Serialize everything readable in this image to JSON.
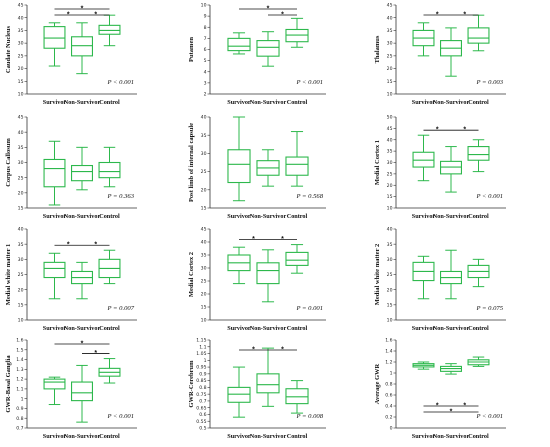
{
  "categories": [
    "Survivor",
    "Non-Survivor",
    "Control"
  ],
  "colors": {
    "box": "#2db84c",
    "axis": "#333333",
    "bracket": "#111111"
  },
  "chart_data": [
    {
      "type": "box",
      "ylabel": "Caudate Nucleus",
      "ylim": [
        10,
        45
      ],
      "yticks": [
        10,
        15,
        20,
        25,
        30,
        35,
        40,
        45
      ],
      "pvalue": "P < 0.001",
      "boxes": [
        {
          "min": 21,
          "q1": 28,
          "median": 32,
          "q3": 36.5,
          "max": 38
        },
        {
          "min": 18,
          "q1": 25,
          "median": 29,
          "q3": 32.5,
          "max": 38
        },
        {
          "min": 29,
          "q1": 33.5,
          "median": 35,
          "q3": 37,
          "max": 41
        }
      ],
      "significance": [
        {
          "from": 0,
          "to": 2,
          "level": "top"
        },
        {
          "from": 0,
          "to": 1,
          "level": "low"
        },
        {
          "from": 1,
          "to": 2,
          "level": "low"
        }
      ]
    },
    {
      "type": "box",
      "ylabel": "Putamen",
      "ylim": [
        2,
        10
      ],
      "yticks": [
        2,
        3,
        4,
        5,
        6,
        7,
        8,
        9,
        10
      ],
      "pvalue": "P < 0.001",
      "boxes": [
        {
          "min": 5.6,
          "q1": 5.9,
          "median": 6.3,
          "q3": 7,
          "max": 7.5
        },
        {
          "min": 4.5,
          "q1": 5.4,
          "median": 6.2,
          "q3": 6.8,
          "max": 7.6
        },
        {
          "min": 6.2,
          "q1": 6.7,
          "median": 7.3,
          "q3": 7.8,
          "max": 8.8
        }
      ],
      "significance": [
        {
          "from": 0,
          "to": 2,
          "level": "top"
        },
        {
          "from": 1,
          "to": 2,
          "level": "low"
        }
      ]
    },
    {
      "type": "box",
      "ylabel": "Thalamus",
      "ylim": [
        10,
        45
      ],
      "yticks": [
        10,
        15,
        20,
        25,
        30,
        35,
        40,
        45
      ],
      "pvalue": "P = 0.003",
      "boxes": [
        {
          "min": 25,
          "q1": 29,
          "median": 32,
          "q3": 35,
          "max": 38
        },
        {
          "min": 17,
          "q1": 25,
          "median": 28,
          "q3": 31,
          "max": 36
        },
        {
          "min": 27,
          "q1": 30,
          "median": 32,
          "q3": 36,
          "max": 41
        }
      ],
      "significance": [
        {
          "from": 0,
          "to": 1,
          "level": "low"
        },
        {
          "from": 1,
          "to": 2,
          "level": "low"
        }
      ]
    },
    {
      "type": "box",
      "ylabel": "Corpus Callosum",
      "ylim": [
        15,
        45
      ],
      "yticks": [
        15,
        20,
        25,
        30,
        35,
        40,
        45
      ],
      "pvalue": "P = 0.363",
      "boxes": [
        {
          "min": 16,
          "q1": 22,
          "median": 28,
          "q3": 31,
          "max": 37
        },
        {
          "min": 21,
          "q1": 24,
          "median": 27,
          "q3": 29,
          "max": 35
        },
        {
          "min": 22,
          "q1": 25,
          "median": 27,
          "q3": 30,
          "max": 35
        }
      ],
      "significance": []
    },
    {
      "type": "box",
      "ylabel": "Post limb of internal capsule",
      "ylim": [
        15,
        40
      ],
      "yticks": [
        15,
        20,
        25,
        30,
        35,
        40
      ],
      "pvalue": "P = 0.568",
      "boxes": [
        {
          "min": 17,
          "q1": 22,
          "median": 27,
          "q3": 31,
          "max": 40
        },
        {
          "min": 21,
          "q1": 24,
          "median": 26,
          "q3": 28,
          "max": 31
        },
        {
          "min": 21,
          "q1": 24,
          "median": 27,
          "q3": 29,
          "max": 36
        }
      ],
      "significance": []
    },
    {
      "type": "box",
      "ylabel": "Medial Cortex 1",
      "ylim": [
        10,
        50
      ],
      "yticks": [
        10,
        15,
        20,
        25,
        30,
        35,
        40,
        45,
        50
      ],
      "pvalue": "P < 0.001",
      "boxes": [
        {
          "min": 22,
          "q1": 28,
          "median": 31,
          "q3": 34.5,
          "max": 42
        },
        {
          "min": 17,
          "q1": 25,
          "median": 28,
          "q3": 30.5,
          "max": 37
        },
        {
          "min": 26,
          "q1": 31,
          "median": 33.5,
          "q3": 37,
          "max": 40
        }
      ],
      "significance": [
        {
          "from": 0,
          "to": 1,
          "level": "low"
        },
        {
          "from": 1,
          "to": 2,
          "level": "low"
        }
      ]
    },
    {
      "type": "box",
      "ylabel": "Medial white matter 1",
      "ylim": [
        10,
        40
      ],
      "yticks": [
        10,
        15,
        20,
        25,
        30,
        35,
        40
      ],
      "pvalue": "P = 0.007",
      "boxes": [
        {
          "min": 17,
          "q1": 24,
          "median": 27,
          "q3": 29,
          "max": 32
        },
        {
          "min": 17,
          "q1": 22,
          "median": 24,
          "q3": 26,
          "max": 29
        },
        {
          "min": 22,
          "q1": 24,
          "median": 27,
          "q3": 30,
          "max": 33
        }
      ],
      "significance": [
        {
          "from": 0,
          "to": 1,
          "level": "low"
        },
        {
          "from": 1,
          "to": 2,
          "level": "low"
        }
      ]
    },
    {
      "type": "box",
      "ylabel": "Medial Cortex 2",
      "ylim": [
        10,
        45
      ],
      "yticks": [
        10,
        15,
        20,
        25,
        30,
        35,
        40,
        45
      ],
      "pvalue": "P = 0.001",
      "boxes": [
        {
          "min": 24,
          "q1": 29,
          "median": 32,
          "q3": 35,
          "max": 38
        },
        {
          "min": 17,
          "q1": 24,
          "median": 29,
          "q3": 32,
          "max": 37
        },
        {
          "min": 28,
          "q1": 31,
          "median": 33,
          "q3": 36,
          "max": 39
        }
      ],
      "significance": [
        {
          "from": 0,
          "to": 1,
          "level": "low"
        },
        {
          "from": 1,
          "to": 2,
          "level": "low"
        }
      ]
    },
    {
      "type": "box",
      "ylabel": "Medial white matter 2",
      "ylim": [
        10,
        40
      ],
      "yticks": [
        10,
        15,
        20,
        25,
        30,
        35,
        40
      ],
      "pvalue": "P = 0.075",
      "boxes": [
        {
          "min": 17,
          "q1": 23,
          "median": 26,
          "q3": 29,
          "max": 31
        },
        {
          "min": 17,
          "q1": 22,
          "median": 24,
          "q3": 26,
          "max": 33
        },
        {
          "min": 21,
          "q1": 24,
          "median": 26,
          "q3": 28,
          "max": 30
        }
      ],
      "significance": []
    },
    {
      "type": "box",
      "ylabel": "GWR-Basal Ganglia",
      "ylim": [
        0.7,
        1.6
      ],
      "yticks": [
        0.7,
        0.8,
        0.9,
        1.0,
        1.1,
        1.2,
        1.3,
        1.4,
        1.5,
        1.6
      ],
      "pvalue": "P < 0.001",
      "boxes": [
        {
          "min": 0.94,
          "q1": 1.1,
          "median": 1.17,
          "q3": 1.2,
          "max": 1.22
        },
        {
          "min": 0.76,
          "q1": 0.98,
          "median": 1.06,
          "q3": 1.17,
          "max": 1.34
        },
        {
          "min": 1.16,
          "q1": 1.23,
          "median": 1.27,
          "q3": 1.31,
          "max": 1.41
        }
      ],
      "significance": [
        {
          "from": 0,
          "to": 2,
          "level": "top"
        },
        {
          "from": 1,
          "to": 2,
          "level": "low"
        }
      ]
    },
    {
      "type": "box",
      "ylabel": "GWR-Cerebrum",
      "ylim": [
        0.5,
        1.15
      ],
      "yticks": [
        0.5,
        0.55,
        0.6,
        0.65,
        0.7,
        0.75,
        0.8,
        0.85,
        0.9,
        0.95,
        1.0,
        1.05,
        1.1,
        1.15
      ],
      "pvalue": "P = 0.008",
      "boxes": [
        {
          "min": 0.58,
          "q1": 0.69,
          "median": 0.75,
          "q3": 0.8,
          "max": 0.95
        },
        {
          "min": 0.66,
          "q1": 0.76,
          "median": 0.82,
          "q3": 0.9,
          "max": 1.09
        },
        {
          "min": 0.61,
          "q1": 0.68,
          "median": 0.73,
          "q3": 0.79,
          "max": 0.85
        }
      ],
      "significance": [
        {
          "from": 0,
          "to": 1,
          "level": "low"
        },
        {
          "from": 1,
          "to": 2,
          "level": "low"
        }
      ]
    },
    {
      "type": "box",
      "ylabel": "Average GWR",
      "ylim": [
        0,
        1.6
      ],
      "yticks": [
        0,
        0.2,
        0.4,
        0.6,
        0.8,
        1.0,
        1.2,
        1.4,
        1.6
      ],
      "pvalue": "P < 0.001",
      "boxes": [
        {
          "min": 1.07,
          "q1": 1.11,
          "median": 1.14,
          "q3": 1.17,
          "max": 1.2
        },
        {
          "min": 0.98,
          "q1": 1.03,
          "median": 1.08,
          "q3": 1.12,
          "max": 1.17
        },
        {
          "min": 1.12,
          "q1": 1.15,
          "median": 1.2,
          "q3": 1.24,
          "max": 1.29
        }
      ],
      "significance": [
        {
          "from": 0,
          "to": 1,
          "level": "below"
        },
        {
          "from": 1,
          "to": 2,
          "level": "below"
        },
        {
          "from": 0,
          "to": 2,
          "level": "below-far"
        }
      ]
    }
  ]
}
